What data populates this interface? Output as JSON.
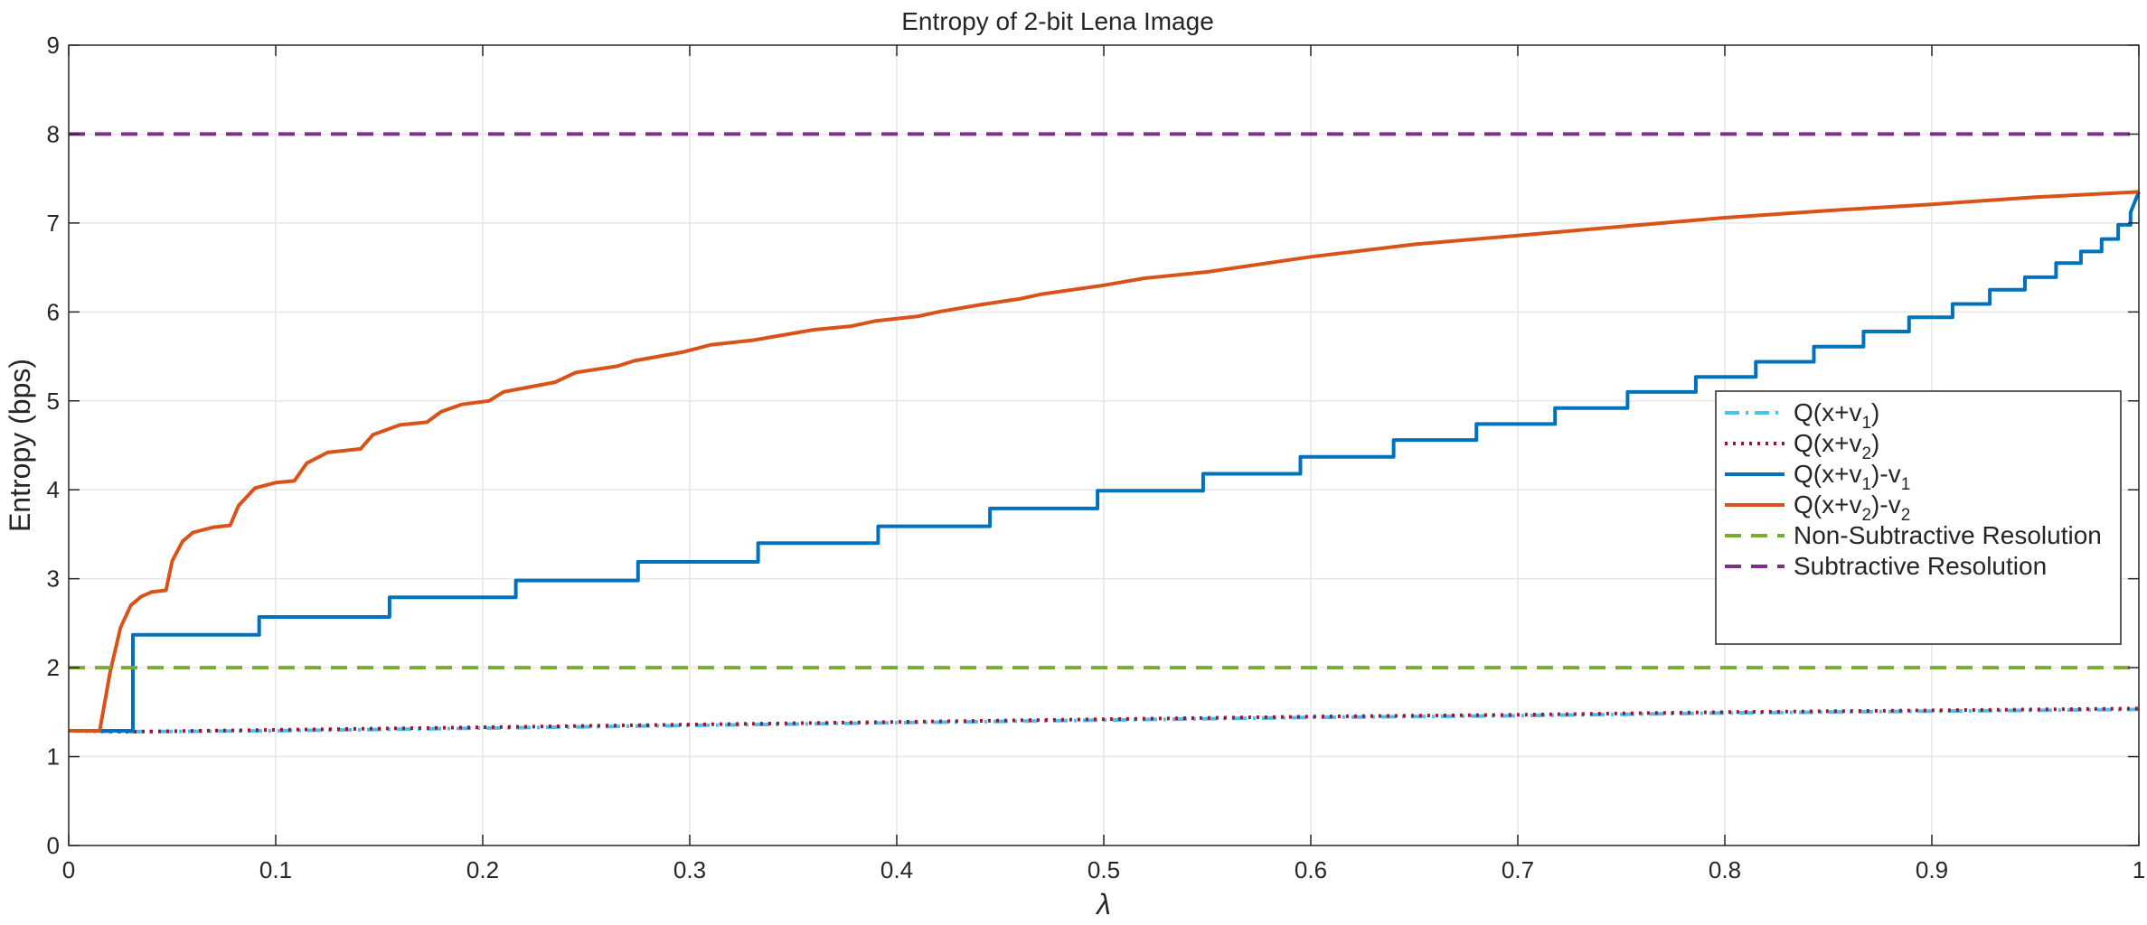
{
  "chart_data": {
    "type": "line",
    "title": "Entropy of 2-bit Lena Image",
    "xlabel": "λ",
    "ylabel": "Entropy (bps)",
    "xlim": [
      0,
      1
    ],
    "ylim": [
      0,
      9
    ],
    "xticks": [
      0,
      0.1,
      0.2,
      0.3,
      0.4,
      0.5,
      0.6,
      0.7,
      0.8,
      0.9,
      1
    ],
    "xtick_labels": [
      "0",
      "0.1",
      "0.2",
      "0.3",
      "0.4",
      "0.5",
      "0.6",
      "0.7",
      "0.8",
      "0.9",
      "1"
    ],
    "yticks": [
      0,
      1,
      2,
      3,
      4,
      5,
      6,
      7,
      8,
      9
    ],
    "ytick_labels": [
      "0",
      "1",
      "2",
      "3",
      "4",
      "5",
      "6",
      "7",
      "8",
      "9"
    ],
    "grid": true,
    "legend_position": "right",
    "series": [
      {
        "name": "Q(x+v1)",
        "legend": {
          "base": "Q(x+v",
          "sub": "1",
          "tail": ")"
        },
        "color": "#4DBEEE",
        "style": "dashdot",
        "x": [
          0,
          0.03,
          0.1,
          0.2,
          0.3,
          0.4,
          0.5,
          0.6,
          0.7,
          0.8,
          0.9,
          1
        ],
        "y": [
          1.29,
          1.28,
          1.29,
          1.32,
          1.35,
          1.38,
          1.41,
          1.44,
          1.46,
          1.49,
          1.51,
          1.53
        ]
      },
      {
        "name": "Q(x+v2)",
        "legend": {
          "base": "Q(x+v",
          "sub": "2",
          "tail": ")"
        },
        "color": "#A2142F",
        "style": "dotted",
        "x": [
          0,
          0.03,
          0.1,
          0.2,
          0.3,
          0.4,
          0.5,
          0.6,
          0.7,
          0.8,
          0.9,
          1
        ],
        "y": [
          1.29,
          1.28,
          1.3,
          1.33,
          1.36,
          1.39,
          1.42,
          1.45,
          1.47,
          1.5,
          1.52,
          1.54
        ]
      },
      {
        "name": "Q(x+v1)-v1",
        "legend": {
          "base": "Q(x+v",
          "sub": "1",
          "tail": ")-v",
          "sub2": "1"
        },
        "color": "#0072BD",
        "style": "solid",
        "x": [
          0,
          0.031,
          0.031,
          0.092,
          0.092,
          0.155,
          0.155,
          0.216,
          0.216,
          0.275,
          0.275,
          0.333,
          0.333,
          0.391,
          0.391,
          0.445,
          0.445,
          0.497,
          0.497,
          0.548,
          0.548,
          0.595,
          0.595,
          0.64,
          0.64,
          0.68,
          0.68,
          0.718,
          0.718,
          0.753,
          0.753,
          0.786,
          0.786,
          0.815,
          0.815,
          0.843,
          0.843,
          0.867,
          0.867,
          0.889,
          0.889,
          0.91,
          0.91,
          0.928,
          0.928,
          0.945,
          0.945,
          0.96,
          0.96,
          0.972,
          0.972,
          0.982,
          0.982,
          0.99,
          0.99,
          0.996,
          0.996,
          1
        ],
        "y": [
          1.29,
          1.29,
          2.37,
          2.37,
          2.57,
          2.57,
          2.79,
          2.79,
          2.98,
          2.98,
          3.19,
          3.19,
          3.4,
          3.4,
          3.59,
          3.59,
          3.79,
          3.79,
          3.99,
          3.99,
          4.18,
          4.18,
          4.37,
          4.37,
          4.56,
          4.56,
          4.74,
          4.74,
          4.92,
          4.92,
          5.1,
          5.1,
          5.27,
          5.27,
          5.44,
          5.44,
          5.61,
          5.61,
          5.78,
          5.78,
          5.94,
          5.94,
          6.09,
          6.09,
          6.25,
          6.25,
          6.39,
          6.39,
          6.55,
          6.55,
          6.68,
          6.68,
          6.82,
          6.82,
          6.98,
          6.98,
          7.12,
          7.35
        ]
      },
      {
        "name": "Q(x+v2)-v2",
        "legend": {
          "base": "Q(x+v",
          "sub": "2",
          "tail": ")-v",
          "sub2": "2"
        },
        "color": "#D95319",
        "style": "solid",
        "x": [
          0,
          0.015,
          0.02,
          0.025,
          0.03,
          0.035,
          0.04,
          0.047,
          0.05,
          0.055,
          0.06,
          0.07,
          0.078,
          0.082,
          0.09,
          0.1,
          0.109,
          0.115,
          0.125,
          0.141,
          0.147,
          0.16,
          0.173,
          0.18,
          0.19,
          0.203,
          0.21,
          0.235,
          0.245,
          0.265,
          0.273,
          0.297,
          0.31,
          0.33,
          0.335,
          0.36,
          0.378,
          0.39,
          0.41,
          0.42,
          0.44,
          0.46,
          0.47,
          0.5,
          0.52,
          0.55,
          0.6,
          0.65,
          0.7,
          0.75,
          0.8,
          0.85,
          0.9,
          0.95,
          1
        ],
        "y": [
          1.29,
          1.29,
          1.95,
          2.45,
          2.7,
          2.8,
          2.85,
          2.87,
          3.2,
          3.42,
          3.52,
          3.58,
          3.6,
          3.82,
          4.02,
          4.08,
          4.1,
          4.3,
          4.42,
          4.46,
          4.62,
          4.73,
          4.76,
          4.88,
          4.96,
          5.0,
          5.1,
          5.21,
          5.32,
          5.39,
          5.45,
          5.55,
          5.63,
          5.68,
          5.7,
          5.8,
          5.84,
          5.9,
          5.95,
          6.0,
          6.08,
          6.15,
          6.2,
          6.3,
          6.38,
          6.45,
          6.62,
          6.76,
          6.86,
          6.96,
          7.06,
          7.14,
          7.21,
          7.29,
          7.35
        ]
      },
      {
        "name": "Non-Subtractive Resolution",
        "legend": {
          "base": "Non-Subtractive Resolution"
        },
        "color": "#77AC30",
        "style": "dashed",
        "x": [
          0,
          1
        ],
        "y": [
          2,
          2
        ]
      },
      {
        "name": "Subtractive Resolution",
        "legend": {
          "base": "Subtractive Resolution"
        },
        "color": "#7E2F8E",
        "style": "dashed",
        "x": [
          0,
          1
        ],
        "y": [
          8,
          8
        ]
      }
    ]
  }
}
